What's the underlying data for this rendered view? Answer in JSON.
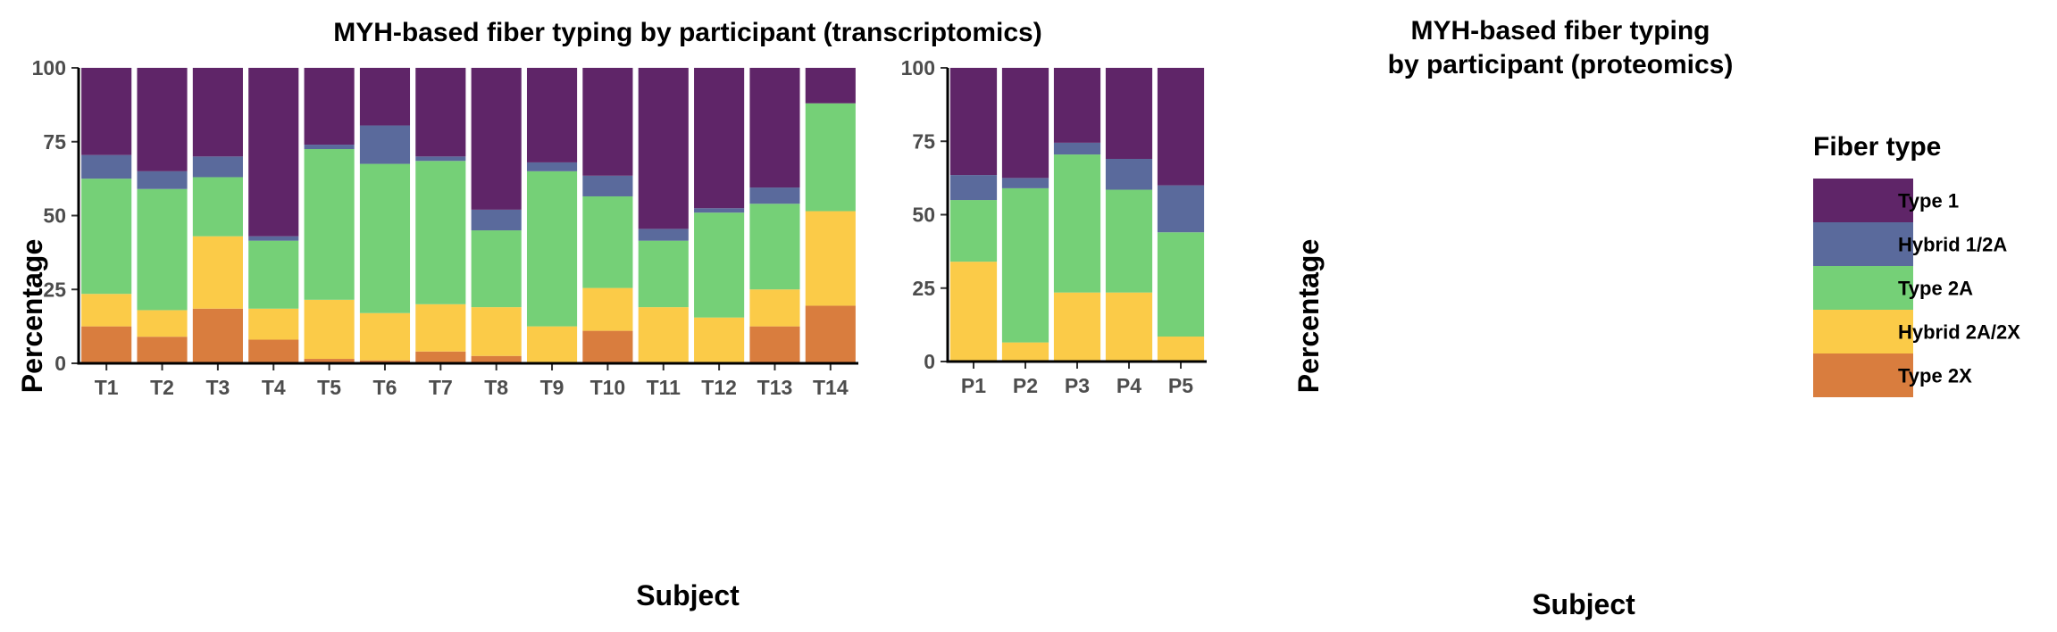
{
  "legend": {
    "title": "Fiber type",
    "entries": [
      {
        "label": "Type 1",
        "color": "#5f2568"
      },
      {
        "label": "Hybrid 1/2A",
        "color": "#5a6a9c"
      },
      {
        "label": "Type 2A",
        "color": "#75d077"
      },
      {
        "label": "Hybrid 2A/2X",
        "color": "#fbcb48"
      },
      {
        "label": "Type 2X",
        "color": "#d97d3e"
      }
    ]
  },
  "chart_data": [
    {
      "type": "bar",
      "stacked": true,
      "title": "MYH-based fiber typing by participant (transcriptomics)",
      "xlabel": "Subject",
      "ylabel": "Percentage",
      "ylim": [
        0,
        100
      ],
      "yticks": [
        0,
        25,
        50,
        75,
        100
      ],
      "categories": [
        "T1",
        "T2",
        "T3",
        "T4",
        "T5",
        "T6",
        "T7",
        "T8",
        "T9",
        "T10",
        "T11",
        "T12",
        "T13",
        "T14"
      ],
      "series": [
        {
          "name": "Type 2X",
          "values": [
            12.5,
            9,
            18.5,
            8,
            1.5,
            1,
            4,
            2.5,
            0,
            11,
            0,
            0,
            12.5,
            19.5
          ]
        },
        {
          "name": "Hybrid 2A/2X",
          "values": [
            11,
            9,
            24.5,
            10.5,
            20,
            16,
            16,
            16.5,
            12.5,
            14.5,
            19,
            15.5,
            12.5,
            32
          ]
        },
        {
          "name": "Type 2A",
          "values": [
            39,
            41,
            20,
            23,
            51,
            50.5,
            48.5,
            26,
            52.5,
            31,
            22.5,
            35.5,
            29,
            36.5
          ]
        },
        {
          "name": "Hybrid 1/2A",
          "values": [
            8,
            6,
            7,
            1.5,
            1.5,
            13,
            1.5,
            7,
            3,
            7,
            4,
            1.5,
            5.5,
            0
          ]
        },
        {
          "name": "Type 1",
          "values": [
            29.5,
            35,
            30,
            57,
            26,
            19.5,
            30,
            48,
            32,
            36.5,
            54.5,
            47.5,
            40.5,
            12
          ]
        }
      ]
    },
    {
      "type": "bar",
      "stacked": true,
      "title": [
        "MYH-based fiber typing",
        "by participant (proteomics)"
      ],
      "xlabel": "Subject",
      "ylabel": "Percentage",
      "ylim": [
        0,
        100
      ],
      "yticks": [
        0,
        25,
        50,
        75,
        100
      ],
      "categories": [
        "P1",
        "P2",
        "P3",
        "P4",
        "P5"
      ],
      "series": [
        {
          "name": "Type 2X",
          "values": [
            0,
            0,
            0,
            0,
            0
          ]
        },
        {
          "name": "Hybrid 2A/2X",
          "values": [
            34,
            6.5,
            23.5,
            23.5,
            8.5
          ]
        },
        {
          "name": "Type 2A",
          "values": [
            21,
            52.5,
            47,
            35,
            35.5
          ]
        },
        {
          "name": "Hybrid 1/2A",
          "values": [
            8.5,
            3.5,
            4,
            10.5,
            16
          ]
        },
        {
          "name": "Type 1",
          "values": [
            36.5,
            37.5,
            25.5,
            31,
            40
          ]
        }
      ]
    }
  ]
}
